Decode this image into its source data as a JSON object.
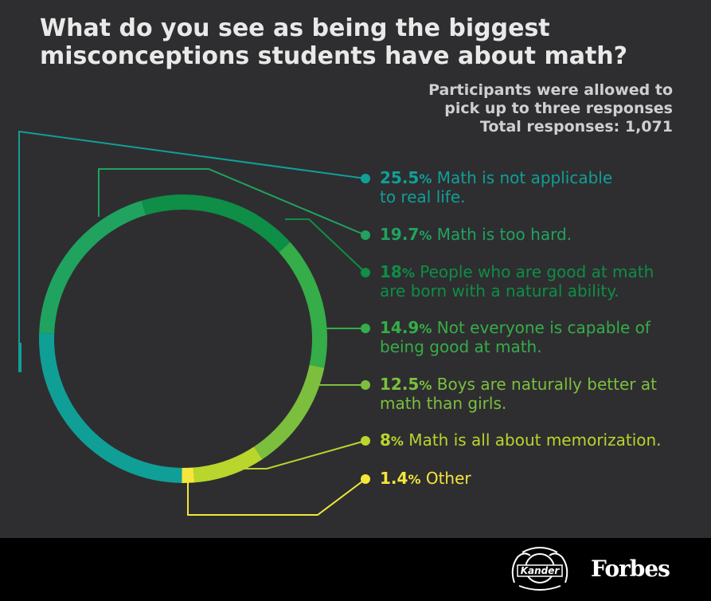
{
  "chart_data": {
    "type": "pie",
    "title": "What do you see as being the biggest misconceptions students have about math?",
    "subtitle_lines": [
      "Participants were allowed to",
      "pick up to three responses",
      "Total responses: 1,071"
    ],
    "slices": [
      {
        "value": 25.5,
        "label_value": "25.5",
        "pct_sign": "%",
        "label": [
          "Math is not applicable",
          "to real life."
        ],
        "color": "#109f97"
      },
      {
        "value": 19.7,
        "label_value": "19.7",
        "pct_sign": "%",
        "label": [
          "Math is too hard."
        ],
        "color": "#1fa35f"
      },
      {
        "value": 18,
        "label_value": "18",
        "pct_sign": "%",
        "label": [
          "People who are good at math",
          "are born with a natural ability."
        ],
        "color": "#0e8e46"
      },
      {
        "value": 14.9,
        "label_value": "14.9",
        "pct_sign": "%",
        "label": [
          "Not everyone is capable of",
          "being good at math."
        ],
        "color": "#35ad48"
      },
      {
        "value": 12.5,
        "label_value": "12.5",
        "pct_sign": "%",
        "label": [
          "Boys are naturally better at",
          "math than girls."
        ],
        "color": "#7cbf3e"
      },
      {
        "value": 8,
        "label_value": "8",
        "pct_sign": "%",
        "label": [
          "Math is all about memorization."
        ],
        "color": "#b8d62c"
      },
      {
        "value": 1.4,
        "label_value": "1.4",
        "pct_sign": "%",
        "label": [
          "Other"
        ],
        "color": "#f4e63a"
      }
    ]
  },
  "footer": {
    "logo_left": "Kander",
    "logo_right": "Forbes"
  }
}
